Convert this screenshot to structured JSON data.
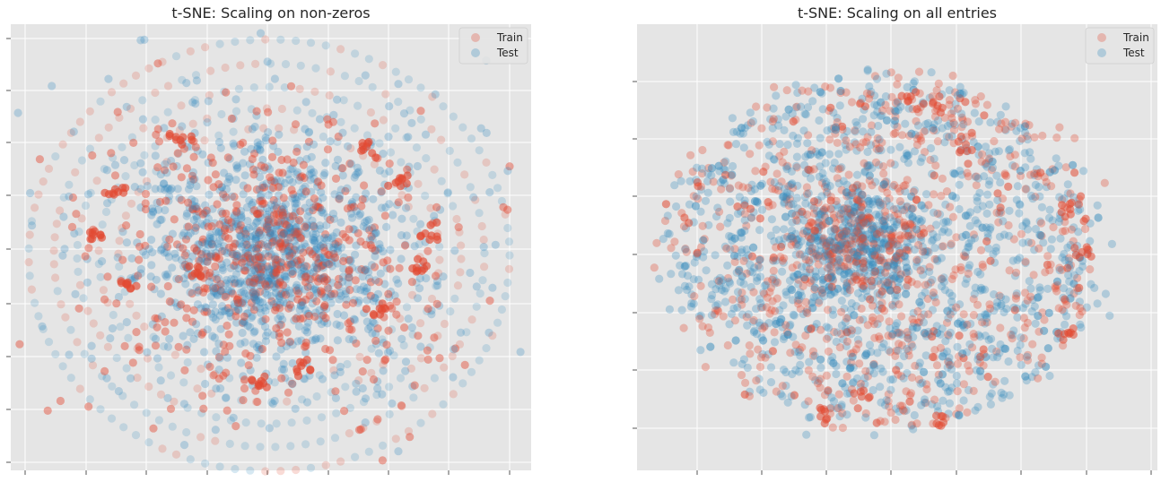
{
  "chart_data": [
    {
      "type": "scatter",
      "title": "t-SNE: Scaling on non-zeros",
      "xlabel": "",
      "ylabel": "",
      "grid": true,
      "legend_position": "top-right",
      "colors": {
        "Train": "#E24A33",
        "Test": "#348ABD",
        "background": "#E5E5E5"
      },
      "series": [
        {
          "name": "Train",
          "points_note": "dense central cluster with outer concentric rings"
        },
        {
          "name": "Test",
          "points_note": "dense central cluster with outer concentric rings"
        }
      ]
    },
    {
      "type": "scatter",
      "title": "t-SNE: Scaling on all entries",
      "xlabel": "",
      "ylabel": "",
      "grid": true,
      "legend_position": "top-right",
      "colors": {
        "Train": "#E24A33",
        "Test": "#348ABD",
        "background": "#E5E5E5"
      },
      "series": [
        {
          "name": "Train"
        },
        {
          "name": "Test"
        }
      ]
    }
  ]
}
